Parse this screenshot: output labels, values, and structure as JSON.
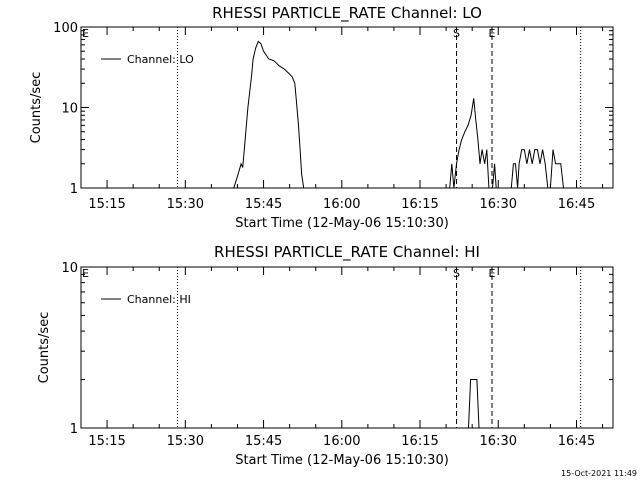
{
  "chart_data": [
    {
      "type": "line",
      "title": "RHESSI PARTICLE_RATE Channel: LO",
      "xlabel": "Start Time (12-May-06 15:10:30)",
      "ylabel": "Counts/sec",
      "y_scale": "log",
      "ylim": [
        1,
        100
      ],
      "xlim": [
        "15:10",
        "16:52"
      ],
      "x_ticks": [
        "15:15",
        "15:30",
        "15:45",
        "16:00",
        "16:15",
        "16:30",
        "16:45"
      ],
      "y_ticks": [
        "1",
        "10",
        "100"
      ],
      "legend": {
        "placement": "top-left",
        "entries": [
          "Channel: LO"
        ]
      },
      "markers": [
        {
          "label": "E",
          "time": "15:10",
          "style": "none"
        },
        {
          "label": "",
          "time": "15:28.5",
          "style": "dotted"
        },
        {
          "label": "S",
          "time": "16:22",
          "style": "dashed"
        },
        {
          "label": "E",
          "time": "16:28.8",
          "style": "dashed"
        },
        {
          "label": "",
          "time": "16:45.8",
          "style": "dotted"
        }
      ],
      "series": [
        {
          "name": "Channel: LO",
          "segments": [
            {
              "x": [
                "15:39.3",
                "15:40",
                "15:40.7",
                "15:41",
                "15:41.3",
                "15:42",
                "15:42.7",
                "15:43",
                "15:43.5",
                "15:44",
                "15:44.5",
                "15:45",
                "15:46",
                "15:47",
                "15:48",
                "15:49",
                "15:50",
                "15:50.5",
                "15:51",
                "15:51.3",
                "15:51.7",
                "15:52",
                "15:52.3",
                "15:52.7"
              ],
              "y": [
                1,
                1.4,
                2.0,
                1.8,
                3,
                10,
                25,
                40,
                55,
                66,
                62,
                50,
                40,
                38,
                33,
                30,
                26,
                24,
                20,
                12,
                6,
                3,
                1.5,
                1
              ]
            },
            {
              "x": [
                "16:20.7",
                "16:21.1",
                "16:21.5",
                "16:22",
                "16:22.5",
                "16:23",
                "16:23.6",
                "16:24.2",
                "16:24.8",
                "16:25.3",
                "16:25.7",
                "16:26.1",
                "16:26.5",
                "16:26.9",
                "16:27.4",
                "16:27.8",
                "16:28.2"
              ],
              "y": [
                1,
                2,
                1,
                2,
                3,
                4,
                5,
                6,
                8,
                13,
                7,
                4,
                2,
                3,
                2,
                3,
                1
              ]
            },
            {
              "x": [
                "16:28.9",
                "16:29.3",
                "16:29.6",
                "16:30",
                "16:31.5",
                "16:32.5",
                "16:32.9",
                "16:33.3",
                "16:33.7",
                "16:34",
                "16:34.5",
                "16:35",
                "16:35.5",
                "16:36",
                "16:36.5",
                "16:37",
                "16:37.5",
                "16:38",
                "16:38.5",
                "16:39",
                "16:39.5",
                "16:40",
                "16:40.5",
                "16:41",
                "16:41.5",
                "16:42",
                "16:42.5",
                "16:43"
              ],
              "y": [
                1,
                2,
                1,
                1,
                1,
                1,
                2,
                2,
                1,
                2,
                3,
                3,
                2,
                3,
                2,
                3,
                3,
                2,
                3,
                2,
                1,
                1,
                3,
                2,
                2,
                2,
                1,
                1
              ]
            }
          ]
        }
      ]
    },
    {
      "type": "line",
      "title": "RHESSI PARTICLE_RATE Channel: HI",
      "xlabel": "Start Time (12-May-06 15:10:30)",
      "ylabel": "Counts/sec",
      "y_scale": "log",
      "ylim": [
        1,
        10
      ],
      "xlim": [
        "15:10",
        "16:52"
      ],
      "x_ticks": [
        "15:15",
        "15:30",
        "15:45",
        "16:00",
        "16:15",
        "16:30",
        "16:45"
      ],
      "y_ticks": [
        "1",
        "10"
      ],
      "legend": {
        "placement": "top-left",
        "entries": [
          "Channel: HI"
        ]
      },
      "markers": [
        {
          "label": "E",
          "time": "15:10",
          "style": "none"
        },
        {
          "label": "",
          "time": "15:28.5",
          "style": "dotted"
        },
        {
          "label": "S",
          "time": "16:22",
          "style": "dashed"
        },
        {
          "label": "E",
          "time": "16:28.8",
          "style": "dashed"
        },
        {
          "label": "",
          "time": "16:45.8",
          "style": "dotted"
        }
      ],
      "series": [
        {
          "name": "Channel: HI",
          "segments": [
            {
              "x": [
                "16:24.3",
                "16:24.7",
                "16:25.1",
                "16:25.5",
                "16:25.9",
                "16:26.3"
              ],
              "y": [
                1,
                2,
                2,
                2,
                2,
                1
              ]
            }
          ]
        }
      ]
    }
  ],
  "footer": {
    "timestamp": "15-Oct-2021 11:49"
  }
}
